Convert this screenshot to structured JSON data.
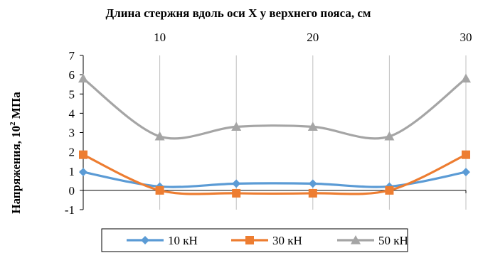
{
  "chart_data": {
    "type": "line",
    "title": "Длина стержня вдоль оси  X у верхнего пояса, см",
    "ylabel_main": "Напряжения, 10",
    "ylabel_sup": "2",
    "ylabel_unit": " МПа",
    "x": [
      5,
      10,
      15,
      20,
      25,
      30
    ],
    "xlim": [
      5,
      30
    ],
    "x_tick_values": [
      10,
      20,
      30
    ],
    "x_tick_labels": [
      "10",
      "20",
      "30"
    ],
    "x_gridlines": [
      10,
      15,
      20,
      25,
      30
    ],
    "ylim": [
      -1,
      7
    ],
    "y_ticks": [
      -1,
      0,
      1,
      2,
      3,
      4,
      5,
      6,
      7
    ],
    "y_tick_labels": [
      "-1",
      "0",
      "1",
      "2",
      "3",
      "4",
      "5",
      "6",
      "7"
    ],
    "grid": "vertical",
    "legend_position": "bottom",
    "series": [
      {
        "name": "10 кН",
        "color": "#5b9bd5",
        "marker": "diamond",
        "values": [
          0.95,
          0.2,
          0.35,
          0.35,
          0.2,
          0.95
        ]
      },
      {
        "name": "30 кН",
        "color": "#ed7d31",
        "marker": "square",
        "values": [
          1.85,
          0.0,
          -0.15,
          -0.15,
          0.0,
          1.85
        ]
      },
      {
        "name": "50 кН",
        "color": "#a5a5a5",
        "marker": "triangle",
        "values": [
          5.8,
          2.8,
          3.3,
          3.3,
          2.8,
          5.8
        ]
      }
    ]
  }
}
